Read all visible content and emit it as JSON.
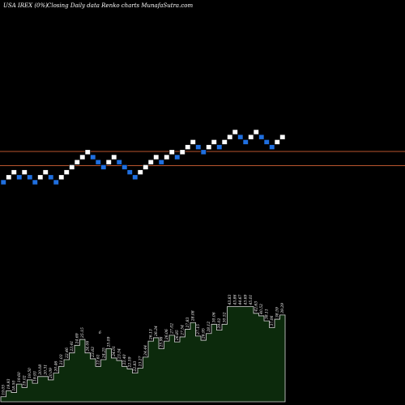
{
  "header": {
    "title": "USA IREX  (0%)",
    "subtitle": "Closing Daily data  Renko  charts MunafaSutra.com"
  },
  "chart_data": {
    "type": "renko",
    "brick_size": 1,
    "colors": {
      "up": "#ffffff",
      "down": "#1f6fe0",
      "reference_line": "#b8552e",
      "volume_fill": "#0c2a0c",
      "volume_stroke": "#d8d8d8",
      "background": "#000000"
    },
    "reference_lines": [
      26.4,
      31.2
    ],
    "bricks": [
      {
        "dir": "down",
        "level": 0
      },
      {
        "dir": "up",
        "level": 1
      },
      {
        "dir": "up",
        "level": 2
      },
      {
        "dir": "down",
        "level": 1
      },
      {
        "dir": "up",
        "level": 2
      },
      {
        "dir": "down",
        "level": 1
      },
      {
        "dir": "down",
        "level": 0
      },
      {
        "dir": "up",
        "level": 1
      },
      {
        "dir": "up",
        "level": 2
      },
      {
        "dir": "down",
        "level": 1
      },
      {
        "dir": "down",
        "level": 0
      },
      {
        "dir": "up",
        "level": 1
      },
      {
        "dir": "up",
        "level": 2
      },
      {
        "dir": "up",
        "level": 3
      },
      {
        "dir": "up",
        "level": 4
      },
      {
        "dir": "up",
        "level": 5
      },
      {
        "dir": "up",
        "level": 6
      },
      {
        "dir": "down",
        "level": 5
      },
      {
        "dir": "down",
        "level": 4
      },
      {
        "dir": "down",
        "level": 3
      },
      {
        "dir": "up",
        "level": 4
      },
      {
        "dir": "up",
        "level": 5
      },
      {
        "dir": "down",
        "level": 4
      },
      {
        "dir": "down",
        "level": 3
      },
      {
        "dir": "down",
        "level": 2
      },
      {
        "dir": "down",
        "level": 1
      },
      {
        "dir": "up",
        "level": 2
      },
      {
        "dir": "up",
        "level": 3
      },
      {
        "dir": "up",
        "level": 4
      },
      {
        "dir": "up",
        "level": 5
      },
      {
        "dir": "down",
        "level": 4
      },
      {
        "dir": "up",
        "level": 5
      },
      {
        "dir": "up",
        "level": 6
      },
      {
        "dir": "down",
        "level": 5
      },
      {
        "dir": "up",
        "level": 6
      },
      {
        "dir": "up",
        "level": 7
      },
      {
        "dir": "up",
        "level": 8
      },
      {
        "dir": "down",
        "level": 7
      },
      {
        "dir": "down",
        "level": 6
      },
      {
        "dir": "up",
        "level": 7
      },
      {
        "dir": "up",
        "level": 8
      },
      {
        "dir": "down",
        "level": 7
      },
      {
        "dir": "up",
        "level": 8
      },
      {
        "dir": "up",
        "level": 9
      },
      {
        "dir": "up",
        "level": 10
      },
      {
        "dir": "down",
        "level": 9
      },
      {
        "dir": "down",
        "level": 8
      },
      {
        "dir": "up",
        "level": 9
      },
      {
        "dir": "up",
        "level": 10
      },
      {
        "dir": "down",
        "level": 9
      },
      {
        "dir": "down",
        "level": 8
      },
      {
        "dir": "down",
        "level": 7
      },
      {
        "dir": "up",
        "level": 8
      },
      {
        "dir": "up",
        "level": 9
      }
    ],
    "volume": [
      {
        "value": 0.6,
        "label": "19.05"
      },
      {
        "value": 1.3,
        "label": "19.93"
      },
      {
        "value": 1.1,
        "label": "18.50"
      },
      {
        "value": 2.1,
        "label": "19.60"
      },
      {
        "value": 1.7,
        "label": "19.02"
      },
      {
        "value": 2.6,
        "label": "19.50"
      },
      {
        "value": 2.2,
        "label": "19.93"
      },
      {
        "value": 3.0,
        "label": "20.08"
      },
      {
        "value": 3.0,
        "label": "20.31"
      },
      {
        "value": 2.6,
        "label": "20.09"
      },
      {
        "value": 3.4,
        "label": "20.46"
      },
      {
        "value": 4.2,
        "label": "21.03"
      },
      {
        "value": 5.0,
        "label": "22.46"
      },
      {
        "value": 5.8,
        "label": "23.41"
      },
      {
        "value": 6.7,
        "label": "24.69"
      },
      {
        "value": 7.4,
        "label": "25.15"
      },
      {
        "value": 5.8,
        "label": "24.06"
      },
      {
        "value": 5.1,
        "label": "23.63"
      },
      {
        "value": 4.2,
        "label": "22.61"
      },
      {
        "value": 5.0,
        "label": "24.25"
      },
      {
        "value": 6.3,
        "label": "25.09"
      },
      {
        "value": 5.2,
        "label": "24.01"
      },
      {
        "value": 4.9,
        "label": "23.54"
      },
      {
        "value": 4.2,
        "label": "22.40"
      },
      {
        "value": 3.9,
        "label": "22.59"
      },
      {
        "value": 3.4,
        "label": "22.83"
      },
      {
        "value": 4.0,
        "label": "23.27"
      },
      {
        "value": 5.3,
        "label": "24.44"
      },
      {
        "value": 7.2,
        "label": "26.13"
      },
      {
        "value": 7.6,
        "label": "26.24"
      },
      {
        "value": 6.3,
        "label": "25.96"
      },
      {
        "value": 7.2,
        "label": "26.06"
      },
      {
        "value": 7.9,
        "label": "27.02"
      },
      {
        "value": 7.1,
        "label": "26.85"
      },
      {
        "value": 7.7,
        "label": "27.54"
      },
      {
        "value": 8.6,
        "label": "27.83"
      },
      {
        "value": 9.4,
        "label": "28.08"
      },
      {
        "value": 7.8,
        "label": "27.15"
      },
      {
        "value": 7.3,
        "label": "26.95"
      },
      {
        "value": 8.1,
        "label": "28.12"
      },
      {
        "value": 9.2,
        "label": "30.06"
      },
      {
        "value": 8.5,
        "label": "29.02"
      },
      {
        "value": 9.2,
        "label": "30.52"
      },
      {
        "value": 11.3,
        "label": "43.83"
      },
      {
        "value": 11.3,
        "label": "43.86"
      },
      {
        "value": 11.3,
        "label": "44.67"
      },
      {
        "value": 11.3,
        "label": "43.69"
      },
      {
        "value": 11.3,
        "label": "45.01"
      },
      {
        "value": 10.5,
        "label": "42.63"
      },
      {
        "value": 10.2,
        "label": "40.52"
      },
      {
        "value": 9.6,
        "label": "38.11"
      },
      {
        "value": 8.8,
        "label": "37.06"
      },
      {
        "value": 9.8,
        "label": "38.59"
      },
      {
        "value": 10.3,
        "label": "39.29"
      }
    ],
    "annotation": {
      "label": "6"
    }
  }
}
